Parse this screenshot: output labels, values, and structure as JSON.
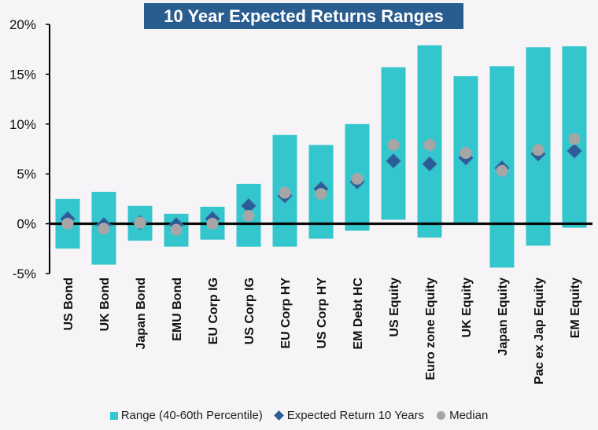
{
  "chart_data": {
    "type": "bar",
    "title": "10 Year Expected Returns Ranges",
    "categories": [
      "US Bond",
      "UK Bond",
      "Japan Bond",
      "EMU Bond",
      "EU Corp IG",
      "US Corp IG",
      "EU Corp HY",
      "US Corp HY",
      "EM Debt HC",
      "US Equity",
      "Euro zone Equity",
      "UK Equity",
      "Japan Equity",
      "Pac ex Jap Equity",
      "EM Equity"
    ],
    "ylim": [
      -5,
      20
    ],
    "yticks": [
      20,
      15,
      10,
      5,
      0,
      -5
    ],
    "ytick_labels": [
      "20%",
      "15%",
      "10%",
      "5%",
      "0%",
      "-5%"
    ],
    "range_low": [
      -2.5,
      -4.1,
      -1.7,
      -2.3,
      -1.6,
      -2.3,
      -2.3,
      -1.5,
      -0.7,
      0.4,
      -1.4,
      0.1,
      -4.4,
      -2.2,
      -0.4
    ],
    "range_high": [
      2.5,
      3.2,
      1.8,
      1.0,
      1.7,
      4.0,
      8.9,
      7.9,
      10.0,
      15.7,
      17.9,
      14.8,
      15.8,
      17.7,
      17.8
    ],
    "expected": [
      0.5,
      -0.1,
      0.1,
      -0.1,
      0.5,
      1.8,
      2.8,
      3.5,
      4.2,
      6.3,
      6.0,
      6.6,
      5.6,
      7.0,
      7.3
    ],
    "median": [
      0.0,
      -0.5,
      0.1,
      -0.6,
      0.0,
      0.8,
      3.1,
      3.0,
      4.5,
      7.9,
      7.9,
      7.1,
      5.3,
      7.4,
      8.5
    ],
    "series_names": {
      "range": "Range (40-60th Percentile)",
      "expected": "Expected Return 10 Years",
      "median": "Median"
    },
    "colors": {
      "range": "#33c6cc",
      "expected": "#2a5d95",
      "median": "#a6a6a6",
      "title_bg": "#2a5d8f"
    },
    "legend_position": "bottom",
    "grid": false
  }
}
